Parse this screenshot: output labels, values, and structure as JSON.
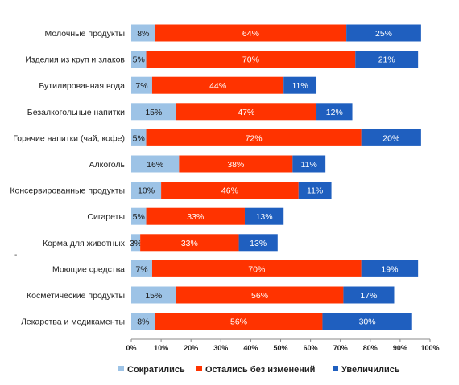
{
  "chart_data": {
    "type": "bar",
    "orientation": "horizontal",
    "stacked": true,
    "categories": [
      "Молочные продукты",
      "Изделия из круп и злаков",
      "Бутилированная вода",
      "Безалкогольные напитки",
      "Горячие напитки (чай, кофе)",
      "Алкоголь",
      "Консервированные продукты",
      "Сигареты",
      "Корма для животных",
      "Моющие средства",
      "Косметические продукты",
      "Лекарства и медикаменты"
    ],
    "series": [
      {
        "name": "Сократились",
        "color": "#9dc3e6",
        "values": [
          8,
          5,
          7,
          15,
          5,
          16,
          10,
          5,
          3,
          7,
          15,
          8
        ]
      },
      {
        "name": "Остались без изменений",
        "color": "#ff3300",
        "values": [
          64,
          70,
          44,
          47,
          72,
          38,
          46,
          33,
          33,
          70,
          56,
          56
        ]
      },
      {
        "name": "Увеличились",
        "color": "#1f5fbf",
        "values": [
          25,
          21,
          11,
          12,
          20,
          11,
          11,
          13,
          13,
          19,
          17,
          30
        ]
      }
    ],
    "xlim": [
      0,
      100
    ],
    "x_ticks": [
      "0%",
      "10%",
      "20%",
      "30%",
      "40%",
      "50%",
      "60%",
      "70%",
      "80%",
      "90%",
      "100%"
    ],
    "value_suffix": "%",
    "legend_position": "bottom",
    "grid": false
  }
}
